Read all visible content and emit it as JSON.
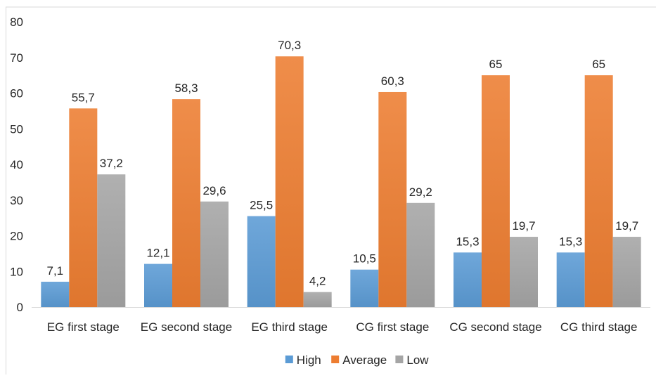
{
  "chart_data": {
    "type": "bar",
    "categories": [
      "EG first stage",
      "EG second stage",
      "EG third stage",
      "CG first stage",
      "CG second stage",
      "CG third stage"
    ],
    "series": [
      {
        "name": "High",
        "values": [
          7.1,
          12.1,
          25.5,
          10.5,
          15.3,
          15.3
        ],
        "labels": [
          "7,1",
          "12,1",
          "25,5",
          "10,5",
          "15,3",
          "15,3"
        ],
        "color": "#5b9bd5"
      },
      {
        "name": "Average",
        "values": [
          55.7,
          58.3,
          70.3,
          60.3,
          65,
          65
        ],
        "labels": [
          "55,7",
          "58,3",
          "70,3",
          "60,3",
          "65",
          "65"
        ],
        "color": "#ed7d31"
      },
      {
        "name": "Low",
        "values": [
          37.2,
          29.6,
          4.2,
          29.2,
          19.7,
          19.7
        ],
        "labels": [
          "37,2",
          "29,6",
          "4,2",
          "29,2",
          "19,7",
          "19,7"
        ],
        "color": "#a5a5a5"
      }
    ],
    "y_ticks": [
      "0",
      "10",
      "20",
      "30",
      "40",
      "50",
      "60",
      "70",
      "80"
    ],
    "ylim": [
      0,
      80
    ],
    "grid": false,
    "legend_position": "bottom",
    "title": "",
    "xlabel": "",
    "ylabel": ""
  }
}
